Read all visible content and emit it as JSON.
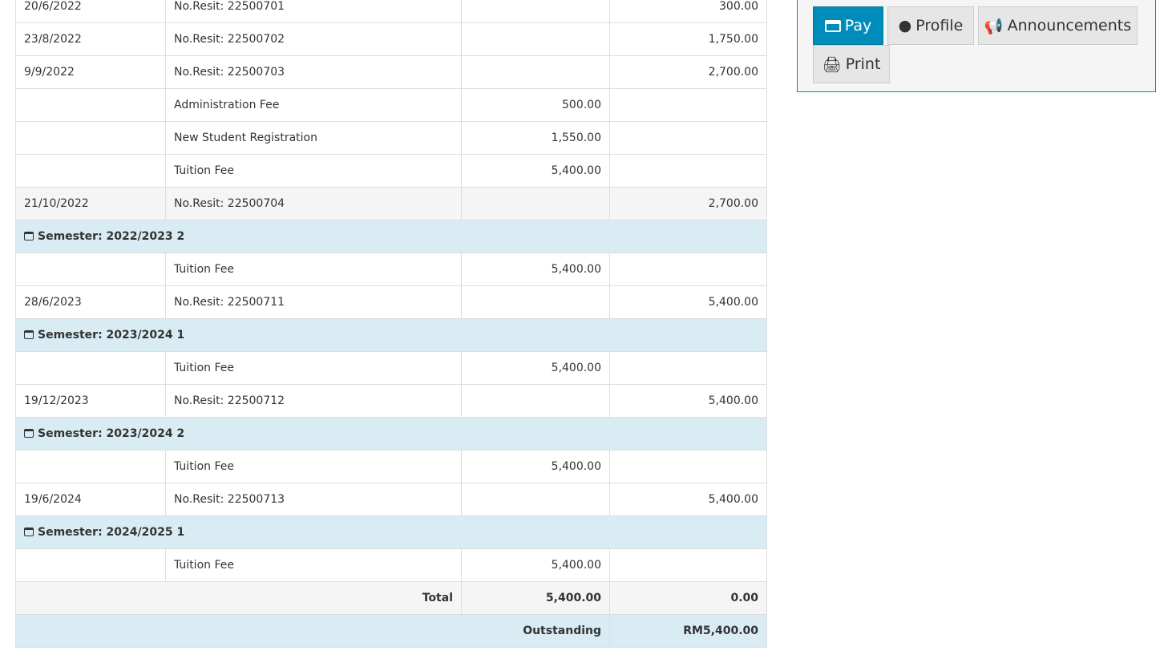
{
  "actions": {
    "pay": "Pay",
    "profile": "Profile",
    "announcements": "Announcements",
    "print": "Print",
    "accent": "#008cba"
  },
  "rows": [
    {
      "type": "row",
      "date": "20/6/2022",
      "desc": "No.Resit: 22500701",
      "debit": "",
      "credit": "300.00"
    },
    {
      "type": "row",
      "date": "23/8/2022",
      "desc": "No.Resit: 22500702",
      "debit": "",
      "credit": "1,750.00"
    },
    {
      "type": "row",
      "date": "9/9/2022",
      "desc": "No.Resit: 22500703",
      "debit": "",
      "credit": "2,700.00"
    },
    {
      "type": "row",
      "date": "",
      "desc": "Administration Fee",
      "debit": "500.00",
      "credit": ""
    },
    {
      "type": "row",
      "date": "",
      "desc": "New Student Registration",
      "debit": "1,550.00",
      "credit": ""
    },
    {
      "type": "row",
      "date": "",
      "desc": "Tuition Fee",
      "debit": "5,400.00",
      "credit": ""
    },
    {
      "type": "alt",
      "date": "21/10/2022",
      "desc": "No.Resit: 22500704",
      "debit": "",
      "credit": "2,700.00"
    },
    {
      "type": "sem",
      "label": "Semester: 2022/2023 2"
    },
    {
      "type": "row",
      "date": "",
      "desc": "Tuition Fee",
      "debit": "5,400.00",
      "credit": ""
    },
    {
      "type": "row",
      "date": "28/6/2023",
      "desc": "No.Resit: 22500711",
      "debit": "",
      "credit": "5,400.00"
    },
    {
      "type": "sem",
      "label": "Semester: 2023/2024 1"
    },
    {
      "type": "row",
      "date": "",
      "desc": "Tuition Fee",
      "debit": "5,400.00",
      "credit": ""
    },
    {
      "type": "row",
      "date": "19/12/2023",
      "desc": "No.Resit: 22500712",
      "debit": "",
      "credit": "5,400.00"
    },
    {
      "type": "sem",
      "label": "Semester: 2023/2024 2"
    },
    {
      "type": "row",
      "date": "",
      "desc": "Tuition Fee",
      "debit": "5,400.00",
      "credit": ""
    },
    {
      "type": "row",
      "date": "19/6/2024",
      "desc": "No.Resit: 22500713",
      "debit": "",
      "credit": "5,400.00"
    },
    {
      "type": "sem",
      "label": "Semester: 2024/2025 1"
    },
    {
      "type": "row",
      "date": "",
      "desc": "Tuition Fee",
      "debit": "5,400.00",
      "credit": ""
    }
  ],
  "total": {
    "label": "Total",
    "debit": "5,400.00",
    "credit": "0.00"
  },
  "outstanding": {
    "label": "Outstanding",
    "value": "RM5,400.00"
  }
}
